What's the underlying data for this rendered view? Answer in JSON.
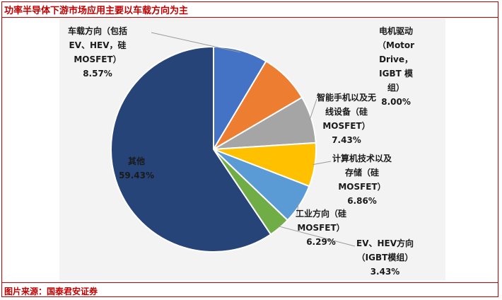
{
  "header": {
    "title": "功率半导体下游市场应用主要以车载方向为主"
  },
  "footer": {
    "source": "图片来源：国泰君安证券"
  },
  "colors": {
    "frame": "#c00000",
    "chart_bg": "#f3f3f3"
  },
  "chart_data": {
    "type": "pie",
    "title": "",
    "start_angle_deg": 0,
    "direction": "clockwise",
    "slices": [
      {
        "name": "车载方向（包括\nEV、HEV，硅\nMOSFET）",
        "value": 8.57,
        "label": "8.57%",
        "color": "#4472c4"
      },
      {
        "name": "电机驱动\n（Motor\nDrive，\nIGBT 模\n组）",
        "value": 8.0,
        "label": "8.00%",
        "color": "#ed7d31"
      },
      {
        "name": "智能手机以及无\n线设备（硅\nMOSFET）",
        "value": 7.43,
        "label": "7.43%",
        "color": "#a5a5a5"
      },
      {
        "name": "计算机技术以及\n存储（硅\nMOSFET）",
        "value": 6.86,
        "label": "6.86%",
        "color": "#ffc000"
      },
      {
        "name": "工业方向（硅\nMOSFET）",
        "value": 6.29,
        "label": "6.29%",
        "color": "#5b9bd5"
      },
      {
        "name": "EV、HEV方向\n（IGBT模组）",
        "value": 3.43,
        "label": "3.43%",
        "color": "#70ad47"
      },
      {
        "name": "其他",
        "value": 59.43,
        "label": "59.43%",
        "color": "#264478"
      }
    ]
  }
}
